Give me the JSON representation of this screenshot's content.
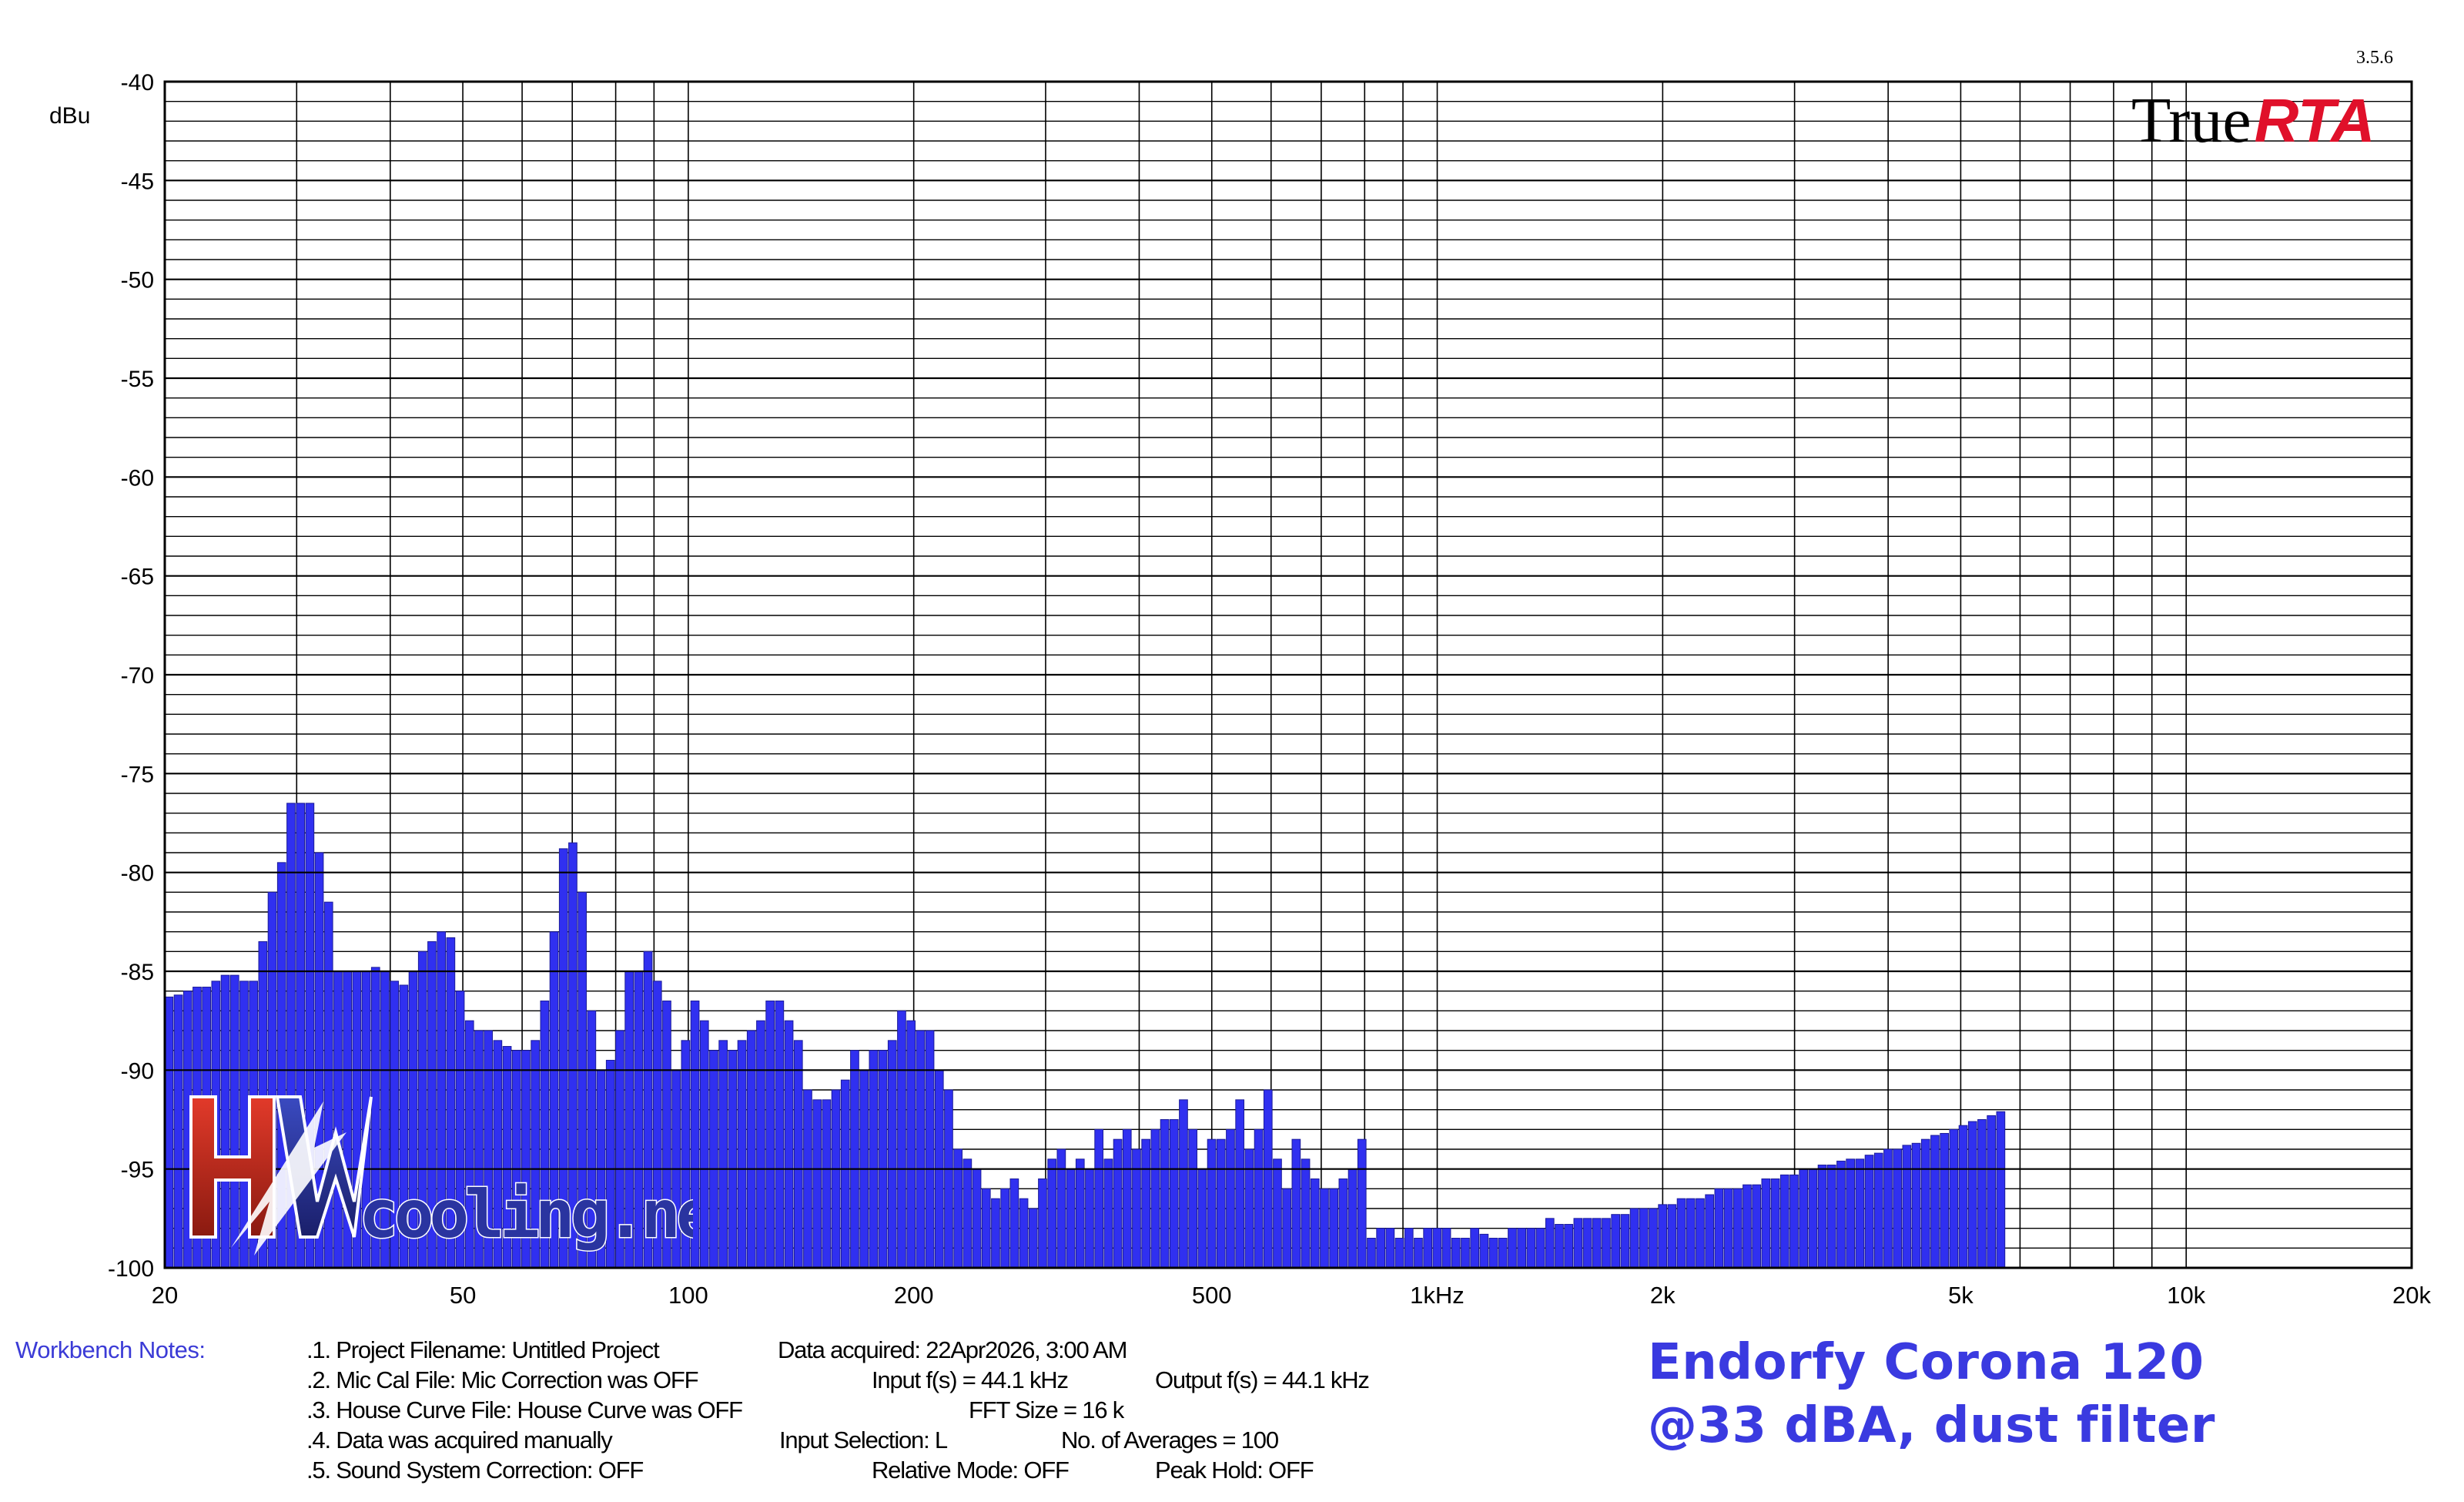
{
  "version": "3.5.6",
  "brand": {
    "part1": "True",
    "part2": "RTA",
    "color_part2": "#e0102a"
  },
  "watermark": {
    "big": "HW",
    "small": "cooling.net"
  },
  "title": {
    "line1": "Endorfy Corona 120",
    "line2": "@33 dBA, dust filter"
  },
  "notes": {
    "label": "Workbench Notes:",
    "items": [
      ".1. Project Filename: Untitled Project",
      ".2. Mic Cal File: Mic Correction was OFF",
      ".3. House Curve File: House Curve was OFF",
      ".4. Data was acquired manually",
      ".5. Sound System Correction: OFF"
    ],
    "acquired": "Data acquired: 22Apr2026, 3:00 AM",
    "input_fs": "Input f(s) = 44.1 kHz",
    "output_fs": "Output f(s) = 44.1 kHz",
    "fft": "FFT Size = 16 k",
    "input_sel": "Input Selection: L",
    "averages": "No. of Averages = 100",
    "relative": "Relative Mode:  OFF",
    "peak": "Peak Hold: OFF"
  },
  "chart_data": {
    "type": "bar",
    "title": "",
    "xlabel": "",
    "ylabel": "dBu",
    "x_scale": "log",
    "xlim": [
      20,
      20000
    ],
    "ylim": [
      -100,
      -40
    ],
    "x_ticks": [
      20,
      50,
      100,
      200,
      500,
      1000,
      2000,
      5000,
      10000,
      20000
    ],
    "x_tick_labels": [
      "20",
      "50",
      "100",
      "200",
      "500",
      "1kHz",
      "2k",
      "5k",
      "10k",
      "20k"
    ],
    "y_ticks": [
      -40,
      -45,
      -50,
      -55,
      -60,
      -65,
      -70,
      -75,
      -80,
      -85,
      -90,
      -95,
      -100
    ],
    "y_tick_labels": [
      "-40",
      "-45",
      "-50",
      "-55",
      "-60",
      "-65",
      "-70",
      "-75",
      "-80",
      "-85",
      "-90",
      "-95",
      "-100"
    ],
    "grid": true,
    "bar_color": "#3030f0",
    "bins_per_octave": 24,
    "values": [
      -86.3,
      -86.2,
      -86.0,
      -85.8,
      -85.8,
      -85.5,
      -85.2,
      -85.2,
      -85.5,
      -85.5,
      -83.5,
      -81.0,
      -79.5,
      -76.5,
      -76.5,
      -76.5,
      -79.0,
      -81.5,
      -85.0,
      -85.0,
      -85.0,
      -85.0,
      -84.8,
      -85.0,
      -85.5,
      -85.7,
      -85.0,
      -84.0,
      -83.5,
      -83.0,
      -83.3,
      -86.0,
      -87.5,
      -88.0,
      -88.0,
      -88.5,
      -88.8,
      -89.0,
      -89.0,
      -88.5,
      -86.5,
      -83.0,
      -78.8,
      -78.5,
      -81.0,
      -87.0,
      -90.0,
      -89.5,
      -88.0,
      -85.0,
      -85.0,
      -84.0,
      -85.5,
      -86.5,
      -90.0,
      -88.5,
      -86.5,
      -87.5,
      -89.0,
      -88.5,
      -89.0,
      -88.5,
      -88.0,
      -87.5,
      -86.5,
      -86.5,
      -87.5,
      -88.5,
      -91.0,
      -91.5,
      -91.5,
      -91.0,
      -90.5,
      -89.0,
      -90.0,
      -89.0,
      -89.0,
      -88.5,
      -87.0,
      -87.5,
      -88.0,
      -88.0,
      -90.0,
      -91.0,
      -94.0,
      -94.5,
      -95.0,
      -96.0,
      -96.5,
      -96.0,
      -95.5,
      -96.5,
      -97.0,
      -95.5,
      -94.5,
      -94.0,
      -95.0,
      -94.5,
      -95.0,
      -93.0,
      -94.5,
      -93.5,
      -93.0,
      -94.0,
      -93.5,
      -93.0,
      -92.5,
      -92.5,
      -91.5,
      -93.0,
      -95.0,
      -93.5,
      -93.5,
      -93.0,
      -91.5,
      -94.0,
      -93.0,
      -91.0,
      -94.5,
      -96.0,
      -93.5,
      -94.5,
      -95.5,
      -96.0,
      -96.0,
      -95.5,
      -95.0,
      -93.5,
      -98.5,
      -98.0,
      -98.0,
      -98.5,
      -98.0,
      -98.5,
      -98.0,
      -98.0,
      -98.0,
      -98.5,
      -98.5,
      -98.0,
      -98.3,
      -98.5,
      -98.5,
      -98.0,
      -98.0,
      -98.0,
      -98.0,
      -97.5,
      -97.8,
      -97.8,
      -97.5,
      -97.5,
      -97.5,
      -97.5,
      -97.3,
      -97.3,
      -97.0,
      -97.0,
      -97.0,
      -96.8,
      -96.8,
      -96.5,
      -96.5,
      -96.5,
      -96.3,
      -96.0,
      -96.0,
      -96.0,
      -95.8,
      -95.8,
      -95.5,
      -95.5,
      -95.3,
      -95.3,
      -95.0,
      -95.0,
      -94.8,
      -94.8,
      -94.6,
      -94.5,
      -94.5,
      -94.3,
      -94.2,
      -94.0,
      -94.0,
      -93.8,
      -93.7,
      -93.5,
      -93.3,
      -93.2,
      -93.0,
      -92.8,
      -92.6,
      -92.5,
      -92.3,
      -92.1
    ]
  }
}
